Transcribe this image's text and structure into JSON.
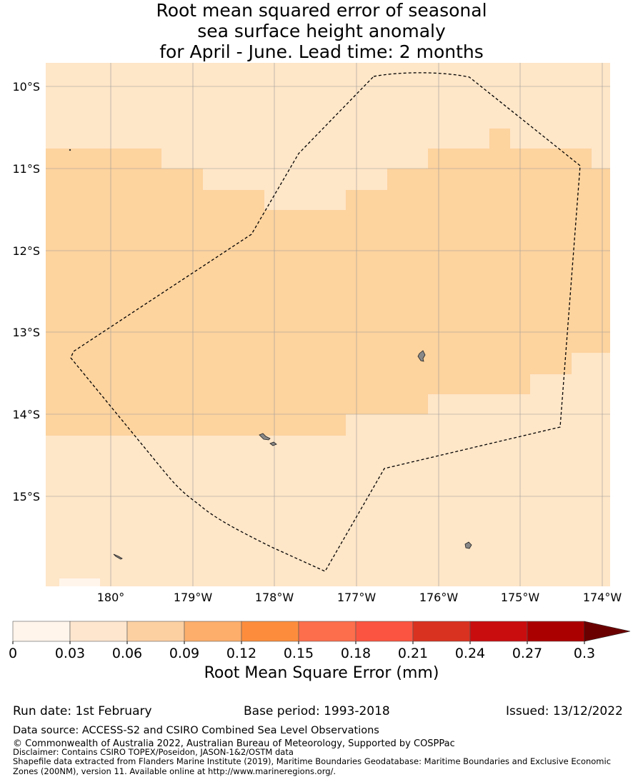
{
  "title": {
    "line1": "Root mean squared error of seasonal",
    "line2": "sea surface height anomaly",
    "line3": "for April - June. Lead time: 2 months"
  },
  "map": {
    "lat_labels": [
      "10°S",
      "11°S",
      "12°S",
      "13°S",
      "14°S",
      "15°S"
    ],
    "lon_labels": [
      "180°",
      "179°W",
      "178°W",
      "177°W",
      "176°W",
      "175°W",
      "174°W"
    ],
    "colors": {
      "light": "#fee6c8",
      "mid": "#fdd39e",
      "boundary": "#000000",
      "land": "#888888",
      "grid": "#999999"
    }
  },
  "colorbar": {
    "ticks": [
      "0",
      "0.03",
      "0.06",
      "0.09",
      "0.12",
      "0.15",
      "0.18",
      "0.21",
      "0.24",
      "0.27",
      "0.3"
    ],
    "colors": [
      "#fff5eb",
      "#fee6ce",
      "#fdd0a2",
      "#fdae6b",
      "#fd8d3c",
      "#fc6e4c",
      "#fb5440",
      "#d93220",
      "#c90d0f",
      "#ab0000",
      "#6b0000"
    ],
    "label": "Root Mean Square Error (mm)"
  },
  "footer": {
    "run_date": "Run date: 1st February",
    "base_period": "Base period: 1993-2018",
    "issued": "Issued: 13/12/2022",
    "data_source": "Data source: ACCESS-S2 and CSIRO Combined Sea Level Observations",
    "copyright": "© Commonwealth of Australia 2022, Australian Bureau of Meteorology, Supported by COSPPac",
    "disclaimer": "Disclaimer: Contains CSIRO TOPEX/Poseidon, JASON-1&2/OSTM data",
    "shapefile1": "Shapefile data extracted from Flanders Marine Institute (2019), Maritime Boundaries Geodatabase: Maritime Boundaries and Exclusive Economic",
    "shapefile2": "Zones (200NM), version 11. Available online at http://www.marineregions.org/."
  }
}
